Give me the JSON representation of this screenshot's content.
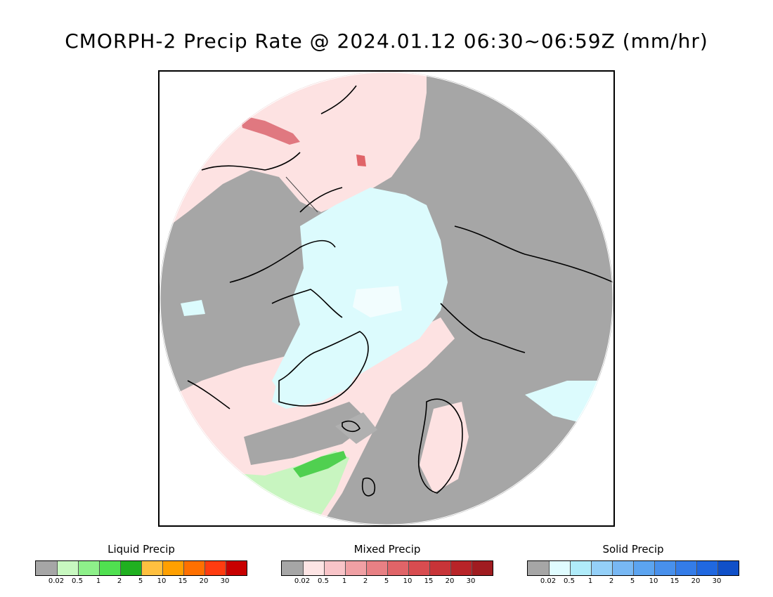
{
  "title": "CMORPH-2 Precip Rate @ 2024.01.12 06:30~06:59Z (mm/hr)",
  "colors": {
    "no_precip": "#a6a6a6",
    "liquid_light": "#c8f5c0",
    "mixed_light": "#fde2e2",
    "solid_light": "#dcfbfd"
  },
  "legends": [
    {
      "title": "Liquid Precip",
      "colors": [
        "#a6a6a6",
        "#c8f8c0",
        "#8ef08a",
        "#50e050",
        "#20b020",
        "#ffc040",
        "#ffa000",
        "#ff7000",
        "#ff3c10",
        "#c80000"
      ],
      "ticks": [
        "0.02",
        "0.5",
        "1",
        "2",
        "5",
        "10",
        "15",
        "20",
        "30"
      ]
    },
    {
      "title": "Mixed Precip",
      "colors": [
        "#a6a6a6",
        "#fde4e4",
        "#f8c4c8",
        "#f0a0a4",
        "#e88084",
        "#e06468",
        "#d84c50",
        "#c83438",
        "#b82428",
        "#a01c20"
      ],
      "ticks": [
        "0.02",
        "0.5",
        "1",
        "2",
        "5",
        "10",
        "15",
        "20",
        "30"
      ]
    },
    {
      "title": "Solid Precip",
      "colors": [
        "#a6a6a6",
        "#e0fcff",
        "#b0ecfa",
        "#94d0f8",
        "#78b8f4",
        "#5ca4f0",
        "#4890ec",
        "#347ce8",
        "#2068e0",
        "#1050c8"
      ],
      "ticks": [
        "0.02",
        "0.5",
        "1",
        "2",
        "5",
        "10",
        "15",
        "20",
        "30"
      ]
    }
  ]
}
